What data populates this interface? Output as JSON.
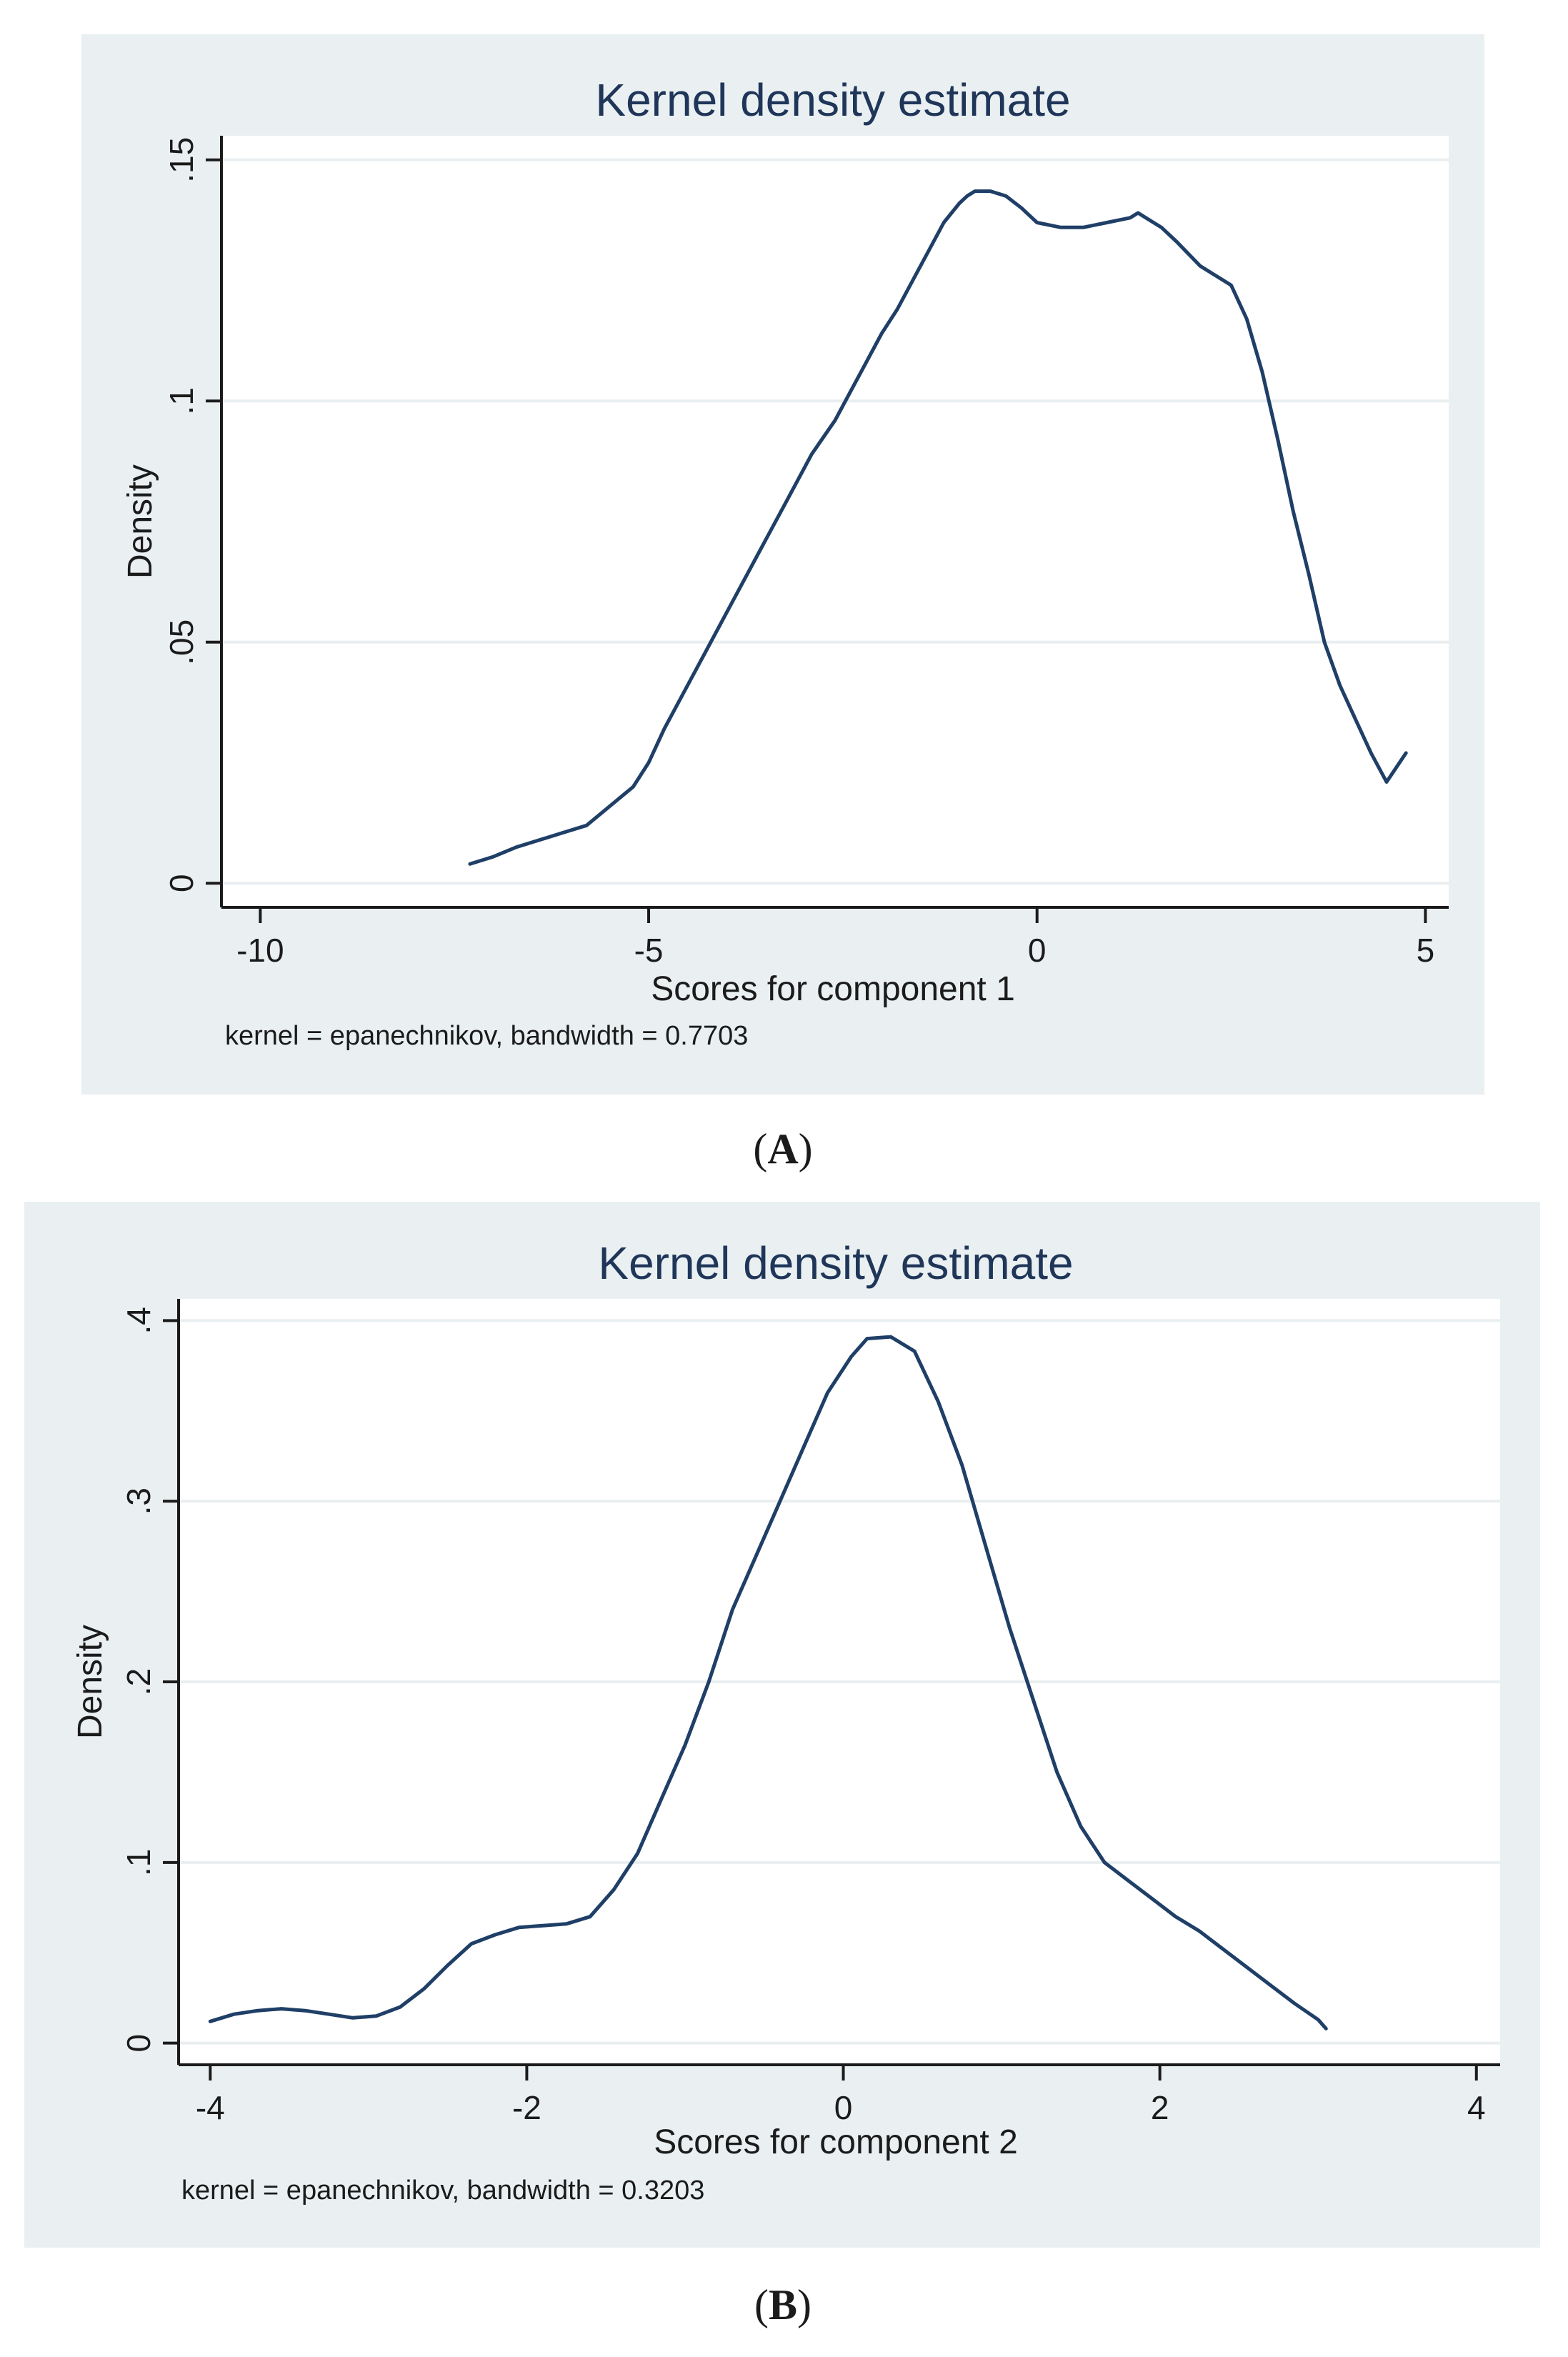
{
  "chart_data": [
    {
      "type": "line",
      "title": "Kernel density estimate",
      "xlabel": "Scores for component 1",
      "ylabel": "Density",
      "note": "kernel = epanechnikov, bandwidth = 0.7703",
      "caption": "A",
      "xlim": [
        -10.5,
        5.3
      ],
      "ylim": [
        -0.005,
        0.155
      ],
      "xticks": [
        -10,
        -5,
        0,
        5
      ],
      "xtick_labels": [
        "-10",
        "-5",
        "0",
        "5"
      ],
      "yticks": [
        0,
        0.05,
        0.1,
        0.15
      ],
      "ytick_labels": [
        "0",
        ".05",
        ".1",
        ".15"
      ],
      "grid": true,
      "series": [
        {
          "name": "density",
          "x": [
            -7.3,
            -7.0,
            -6.7,
            -6.4,
            -6.1,
            -5.8,
            -5.5,
            -5.2,
            -5.0,
            -4.8,
            -4.5,
            -4.2,
            -3.9,
            -3.5,
            -3.2,
            -2.9,
            -2.6,
            -2.4,
            -2.2,
            -2.0,
            -1.8,
            -1.6,
            -1.4,
            -1.2,
            -1.0,
            -0.9,
            -0.8,
            -0.6,
            -0.4,
            -0.2,
            0.0,
            0.3,
            0.6,
            0.9,
            1.2,
            1.3,
            1.4,
            1.6,
            1.8,
            2.1,
            2.3,
            2.5,
            2.7,
            2.9,
            3.1,
            3.3,
            3.5,
            3.7,
            3.9,
            4.1,
            4.3,
            4.5,
            4.75
          ],
          "y": [
            0.004,
            0.0055,
            0.0075,
            0.009,
            0.0105,
            0.012,
            0.016,
            0.02,
            0.025,
            0.032,
            0.041,
            0.05,
            0.059,
            0.071,
            0.08,
            0.089,
            0.096,
            0.102,
            0.108,
            0.114,
            0.119,
            0.125,
            0.131,
            0.137,
            0.141,
            0.1425,
            0.1435,
            0.1435,
            0.1425,
            0.14,
            0.137,
            0.136,
            0.136,
            0.137,
            0.138,
            0.139,
            0.138,
            0.136,
            0.133,
            0.128,
            0.126,
            0.124,
            0.117,
            0.106,
            0.092,
            0.077,
            0.064,
            0.05,
            0.041,
            0.034,
            0.027,
            0.021,
            0.027
          ]
        }
      ]
    },
    {
      "type": "line",
      "title": "Kernel density estimate",
      "xlabel": "Scores for component 2",
      "ylabel": "Density",
      "note": "kernel = epanechnikov, bandwidth = 0.3203",
      "caption": "B",
      "xlim": [
        -4.2,
        4.15
      ],
      "ylim": [
        -0.012,
        0.412
      ],
      "xticks": [
        -4,
        -2,
        0,
        2,
        4
      ],
      "xtick_labels": [
        "-4",
        "-2",
        "0",
        "2",
        "4"
      ],
      "yticks": [
        0,
        0.1,
        0.2,
        0.3,
        0.4
      ],
      "ytick_labels": [
        "0",
        ".1",
        ".2",
        ".3",
        ".4"
      ],
      "grid": true,
      "series": [
        {
          "name": "density",
          "x": [
            -4.0,
            -3.85,
            -3.7,
            -3.55,
            -3.4,
            -3.25,
            -3.1,
            -2.95,
            -2.8,
            -2.65,
            -2.5,
            -2.35,
            -2.2,
            -2.05,
            -1.9,
            -1.75,
            -1.6,
            -1.45,
            -1.3,
            -1.15,
            -1.0,
            -0.85,
            -0.7,
            -0.55,
            -0.4,
            -0.25,
            -0.1,
            0.05,
            0.15,
            0.3,
            0.45,
            0.6,
            0.75,
            0.9,
            1.05,
            1.2,
            1.35,
            1.5,
            1.65,
            1.8,
            1.95,
            2.1,
            2.25,
            2.4,
            2.55,
            2.7,
            2.85,
            3.0,
            3.05
          ],
          "y": [
            0.012,
            0.016,
            0.018,
            0.019,
            0.018,
            0.016,
            0.014,
            0.015,
            0.02,
            0.03,
            0.043,
            0.055,
            0.06,
            0.064,
            0.065,
            0.066,
            0.07,
            0.085,
            0.105,
            0.135,
            0.165,
            0.2,
            0.24,
            0.27,
            0.3,
            0.33,
            0.36,
            0.38,
            0.39,
            0.391,
            0.383,
            0.355,
            0.32,
            0.275,
            0.23,
            0.19,
            0.15,
            0.12,
            0.1,
            0.09,
            0.08,
            0.07,
            0.062,
            0.052,
            0.042,
            0.032,
            0.022,
            0.013,
            0.008
          ]
        }
      ]
    }
  ]
}
